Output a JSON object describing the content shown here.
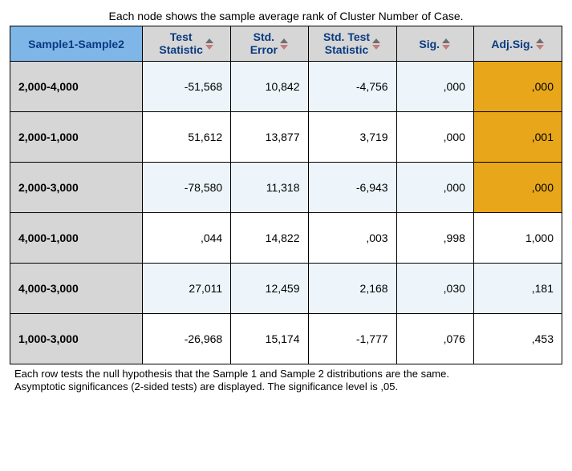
{
  "caption_top": "Each node shows the sample average rank of Cluster Number of Case.",
  "footnote_line1": "Each row tests the null hypothesis that the Sample 1 and Sample 2 distributions are the same.",
  "footnote_line2": "Asymptotic significances (2-sided tests) are displayed. The significance level is ,05.",
  "colors": {
    "header_sample_bg": "#7eb6e8",
    "header_other_bg": "#d6d6d6",
    "rowlabel_bg": "#d6d6d6",
    "alt_row_bg": "#edf5fa",
    "highlight_bg": "#e8a61a",
    "white_bg": "#ffffff",
    "header_text": "#0a3a80",
    "sort_up": "#6e6e6e",
    "sort_down": "#c47a7a"
  },
  "columns": [
    {
      "label_l1": "Sample1-Sample2",
      "label_l2": "",
      "sortable": false
    },
    {
      "label_l1": "Test",
      "label_l2": "Statistic",
      "sortable": true
    },
    {
      "label_l1": "Std.",
      "label_l2": "Error",
      "sortable": true
    },
    {
      "label_l1": "Std. Test",
      "label_l2": "Statistic",
      "sortable": true
    },
    {
      "label_l1": "Sig.",
      "label_l2": "",
      "sortable": true
    },
    {
      "label_l1": "Adj.Sig.",
      "label_l2": "",
      "sortable": true
    }
  ],
  "rows": [
    {
      "label": "2,000-4,000",
      "v": [
        "-51,568",
        "10,842",
        "-4,756",
        ",000",
        ",000"
      ],
      "alt": true,
      "hl": true
    },
    {
      "label": "2,000-1,000",
      "v": [
        "51,612",
        "13,877",
        "3,719",
        ",000",
        ",001"
      ],
      "alt": false,
      "hl": true
    },
    {
      "label": "2,000-3,000",
      "v": [
        "-78,580",
        "11,318",
        "-6,943",
        ",000",
        ",000"
      ],
      "alt": true,
      "hl": true
    },
    {
      "label": "4,000-1,000",
      "v": [
        ",044",
        "14,822",
        ",003",
        ",998",
        "1,000"
      ],
      "alt": false,
      "hl": false
    },
    {
      "label": "4,000-3,000",
      "v": [
        "27,011",
        "12,459",
        "2,168",
        ",030",
        ",181"
      ],
      "alt": true,
      "hl": false
    },
    {
      "label": "1,000-3,000",
      "v": [
        "-26,968",
        "15,174",
        "-1,777",
        ",076",
        ",453"
      ],
      "alt": false,
      "hl": false
    }
  ]
}
